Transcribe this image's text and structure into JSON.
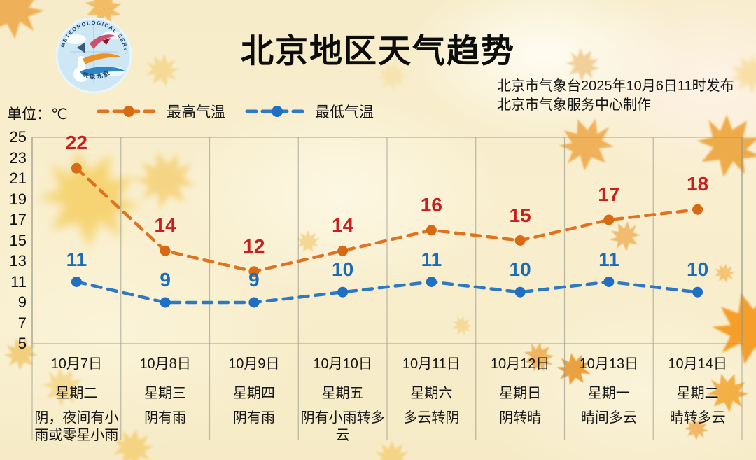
{
  "header": {
    "title": "北京地区天气趋势",
    "issued_line1": "北京市气象台2025年10月6日11时发布",
    "issued_line2": "北京市气象服务中心制作",
    "logo_text_top": "METEOROLOGICAL SERVICE",
    "logo_text_bottom": "气象北京"
  },
  "unit_label": "单位：℃",
  "legend": [
    {
      "label": "最高气温",
      "line_color": "#de7321",
      "dot_color": "#d96a14"
    },
    {
      "label": "最低气温",
      "line_color": "#2e78c4",
      "dot_color": "#1f6fc4"
    }
  ],
  "chart_data": {
    "type": "line",
    "title": "北京地区天气趋势",
    "ylabel": "单位：℃",
    "ylim": [
      5,
      25
    ],
    "yticks": [
      25,
      23,
      21,
      19,
      17,
      15,
      13,
      11,
      9,
      7,
      5
    ],
    "grid": "vertical-column-separators",
    "legend_position": "top-left",
    "categories": [
      "10月7日",
      "10月8日",
      "10月9日",
      "10月10日",
      "10月11日",
      "10月12日",
      "10月13日",
      "10月14日"
    ],
    "weekdays": [
      "星期二",
      "星期三",
      "星期四",
      "星期五",
      "星期六",
      "星期日",
      "星期一",
      "星期二"
    ],
    "weather": [
      "阴，夜间有小雨或零星小雨",
      "阴有雨",
      "阴有雨",
      "阴有小雨转多云",
      "多云转阴",
      "阴转晴",
      "晴间多云",
      "晴转多云"
    ],
    "series": [
      {
        "name": "最高气温",
        "values": [
          22,
          14,
          12,
          14,
          16,
          15,
          17,
          18
        ],
        "line_color": "#de7321",
        "point_color": "#d96a14",
        "label_color": "#c8201e"
      },
      {
        "name": "最低气温",
        "values": [
          11,
          9,
          9,
          10,
          11,
          10,
          11,
          10
        ],
        "line_color": "#2e78c4",
        "point_color": "#1f6fc4",
        "label_color": "#1a6cb8"
      }
    ]
  }
}
